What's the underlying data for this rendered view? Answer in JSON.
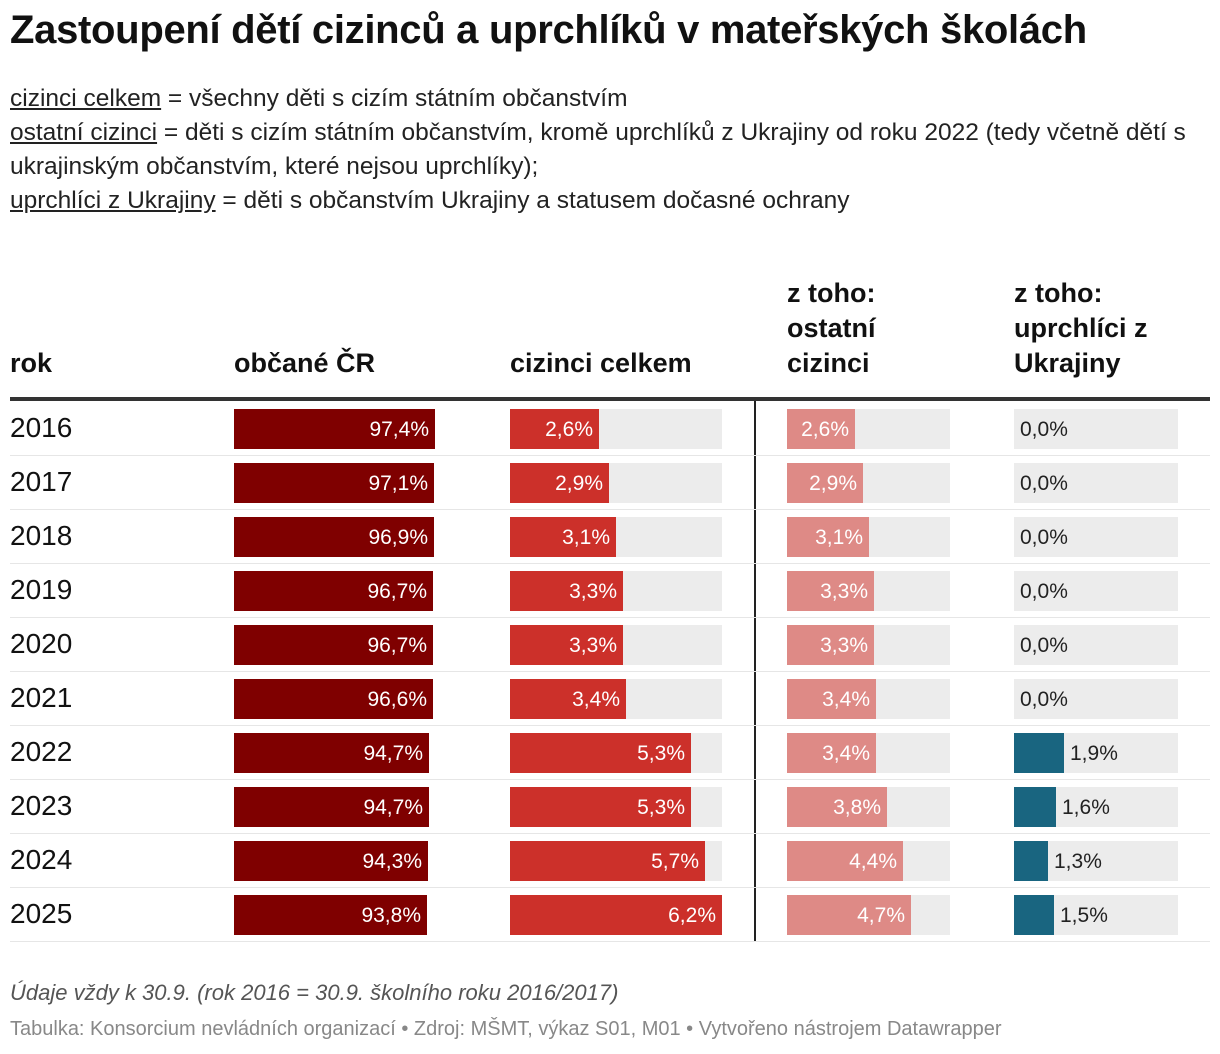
{
  "title": "Zastoupení dětí cizinců a uprchlíků v mateřských školách",
  "definitions": [
    {
      "term": "cizinci celkem",
      "text": " = všechny děti s cizím státním občanstvím"
    },
    {
      "term": "ostatní cizinci",
      "text": " = děti s cizím státním občanstvím, kromě uprchlíků z Ukrajiny od roku 2022 (tedy včetně dětí s ukrajinským občanstvím, které nejsou uprchlíky);"
    },
    {
      "term": "uprchlíci z Ukrajiny",
      "text": " = děti s občanstvím Ukrajiny a statusem dočasné ochrany"
    }
  ],
  "columns": {
    "year": "rok",
    "citizens": "občané ČR",
    "foreigners_total": "cizinci celkem",
    "other_foreigners": "z toho: ostatní cizinci",
    "refugees": "z toho: uprchlíci z Ukrajiny"
  },
  "colors": {
    "citizens": "#7f0000",
    "foreigners_total": "#cc302a",
    "other_foreigners": "#de8a86",
    "refugees": "#196580",
    "track": "#ececec"
  },
  "chart_data": {
    "type": "table",
    "title": "Zastoupení dětí cizinců a uprchlíků v mateřských školách",
    "unit": "%",
    "rows": [
      {
        "year": "2016",
        "citizens": 97.4,
        "citizens_label": "97,4%",
        "foreigners_total": 2.6,
        "foreigners_total_label": "2,6%",
        "other_foreigners": 2.6,
        "other_foreigners_label": "2,6%",
        "refugees": 0.0,
        "refugees_label": "0,0%"
      },
      {
        "year": "2017",
        "citizens": 97.1,
        "citizens_label": "97,1%",
        "foreigners_total": 2.9,
        "foreigners_total_label": "2,9%",
        "other_foreigners": 2.9,
        "other_foreigners_label": "2,9%",
        "refugees": 0.0,
        "refugees_label": "0,0%"
      },
      {
        "year": "2018",
        "citizens": 96.9,
        "citizens_label": "96,9%",
        "foreigners_total": 3.1,
        "foreigners_total_label": "3,1%",
        "other_foreigners": 3.1,
        "other_foreigners_label": "3,1%",
        "refugees": 0.0,
        "refugees_label": "0,0%"
      },
      {
        "year": "2019",
        "citizens": 96.7,
        "citizens_label": "96,7%",
        "foreigners_total": 3.3,
        "foreigners_total_label": "3,3%",
        "other_foreigners": 3.3,
        "other_foreigners_label": "3,3%",
        "refugees": 0.0,
        "refugees_label": "0,0%"
      },
      {
        "year": "2020",
        "citizens": 96.7,
        "citizens_label": "96,7%",
        "foreigners_total": 3.3,
        "foreigners_total_label": "3,3%",
        "other_foreigners": 3.3,
        "other_foreigners_label": "3,3%",
        "refugees": 0.0,
        "refugees_label": "0,0%"
      },
      {
        "year": "2021",
        "citizens": 96.6,
        "citizens_label": "96,6%",
        "foreigners_total": 3.4,
        "foreigners_total_label": "3,4%",
        "other_foreigners": 3.4,
        "other_foreigners_label": "3,4%",
        "refugees": 0.0,
        "refugees_label": "0,0%"
      },
      {
        "year": "2022",
        "citizens": 94.7,
        "citizens_label": "94,7%",
        "foreigners_total": 5.3,
        "foreigners_total_label": "5,3%",
        "other_foreigners": 3.4,
        "other_foreigners_label": "3,4%",
        "refugees": 1.9,
        "refugees_label": "1,9%"
      },
      {
        "year": "2023",
        "citizens": 94.7,
        "citizens_label": "94,7%",
        "foreigners_total": 5.3,
        "foreigners_total_label": "5,3%",
        "other_foreigners": 3.8,
        "other_foreigners_label": "3,8%",
        "refugees": 1.6,
        "refugees_label": "1,6%"
      },
      {
        "year": "2024",
        "citizens": 94.3,
        "citizens_label": "94,3%",
        "foreigners_total": 5.7,
        "foreigners_total_label": "5,7%",
        "other_foreigners": 4.4,
        "other_foreigners_label": "4,4%",
        "refugees": 1.3,
        "refugees_label": "1,3%"
      },
      {
        "year": "2025",
        "citizens": 93.8,
        "citizens_label": "93,8%",
        "foreigners_total": 6.2,
        "foreigners_total_label": "6,2%",
        "other_foreigners": 4.7,
        "other_foreigners_label": "4,7%",
        "refugees": 1.5,
        "refugees_label": "1,5%"
      }
    ]
  },
  "note": "Údaje vždy k 30.9. (rok 2016 = 30.9. školního roku 2016/2017)",
  "source": "Tabulka: Konsorcium nevládních organizací • Zdroj: MŠMT, výkaz S01, M01 • Vytvořeno nástrojem Datawrapper"
}
